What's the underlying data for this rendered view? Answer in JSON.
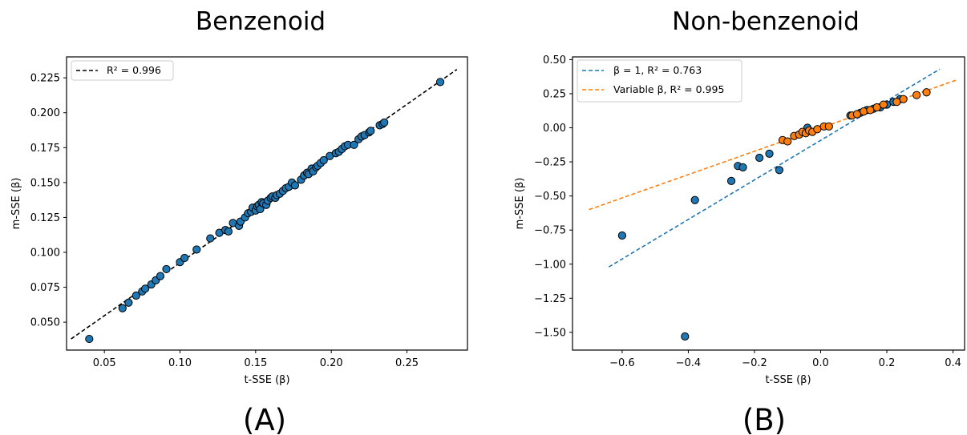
{
  "chart_data": [
    {
      "type": "scatter",
      "title": "Benzenoid",
      "panel_label": "(A)",
      "xlabel": "t-SSE (β)",
      "ylabel": "m-SSE (β)",
      "xlim": [
        0.025,
        0.29
      ],
      "ylim": [
        0.03,
        0.24
      ],
      "xticks": [
        0.05,
        0.1,
        0.15,
        0.2,
        0.25
      ],
      "xtick_labels": [
        "0.05",
        "0.10",
        "0.15",
        "0.20",
        "0.25"
      ],
      "yticks": [
        0.05,
        0.075,
        0.1,
        0.125,
        0.15,
        0.175,
        0.2,
        0.225
      ],
      "ytick_labels": [
        "0.050",
        "0.075",
        "0.100",
        "0.125",
        "0.150",
        "0.175",
        "0.200",
        "0.225"
      ],
      "legend_placement": "upper-left",
      "series": [
        {
          "name": "",
          "kind": "points",
          "color": "#1f77b4",
          "x": [
            0.04,
            0.062,
            0.066,
            0.071,
            0.075,
            0.077,
            0.081,
            0.084,
            0.087,
            0.091,
            0.1,
            0.103,
            0.111,
            0.12,
            0.126,
            0.13,
            0.132,
            0.135,
            0.139,
            0.14,
            0.143,
            0.145,
            0.147,
            0.148,
            0.15,
            0.151,
            0.152,
            0.153,
            0.154,
            0.155,
            0.157,
            0.158,
            0.16,
            0.161,
            0.163,
            0.164,
            0.166,
            0.168,
            0.17,
            0.172,
            0.174,
            0.176,
            0.18,
            0.182,
            0.184,
            0.185,
            0.187,
            0.188,
            0.19,
            0.191,
            0.193,
            0.195,
            0.199,
            0.203,
            0.205,
            0.207,
            0.209,
            0.211,
            0.215,
            0.218,
            0.22,
            0.222,
            0.225,
            0.226,
            0.232,
            0.234,
            0.235,
            0.272
          ],
          "y": [
            0.038,
            0.06,
            0.064,
            0.069,
            0.072,
            0.074,
            0.077,
            0.08,
            0.083,
            0.088,
            0.093,
            0.096,
            0.102,
            0.11,
            0.114,
            0.116,
            0.115,
            0.121,
            0.119,
            0.122,
            0.125,
            0.128,
            0.129,
            0.132,
            0.13,
            0.133,
            0.134,
            0.131,
            0.136,
            0.135,
            0.134,
            0.137,
            0.139,
            0.14,
            0.139,
            0.141,
            0.142,
            0.144,
            0.146,
            0.147,
            0.15,
            0.148,
            0.152,
            0.155,
            0.157,
            0.156,
            0.16,
            0.158,
            0.161,
            0.162,
            0.164,
            0.166,
            0.169,
            0.171,
            0.172,
            0.174,
            0.176,
            0.177,
            0.177,
            0.181,
            0.183,
            0.184,
            0.186,
            0.187,
            0.191,
            0.192,
            0.193,
            0.222
          ]
        },
        {
          "name": "R² = 0.996",
          "kind": "line",
          "style": "dashed",
          "color": "#000000",
          "x": [
            0.028,
            0.283
          ],
          "y": [
            0.038,
            0.231
          ]
        }
      ]
    },
    {
      "type": "scatter",
      "title": "Non-benzenoid",
      "panel_label": "(B)",
      "xlabel": "t-SSE (β)",
      "ylabel": "m-SSE (β)",
      "xlim": [
        -0.75,
        0.435
      ],
      "ylim": [
        -1.63,
        0.52
      ],
      "xticks": [
        -0.6,
        -0.4,
        -0.2,
        0.0,
        0.2,
        0.4
      ],
      "xtick_labels": [
        "−0.6",
        "−0.4",
        "−0.2",
        "0.0",
        "0.2",
        "0.4"
      ],
      "yticks": [
        0.5,
        0.25,
        0.0,
        -0.25,
        -0.5,
        -0.75,
        -1.0,
        -1.25,
        -1.5
      ],
      "ytick_labels": [
        "0.50",
        "0.25",
        "0.00",
        "−0.25",
        "−0.50",
        "−0.75",
        "−1.00",
        "−1.25",
        "−1.50"
      ],
      "legend_placement": "upper-left",
      "series": [
        {
          "name": "",
          "kind": "points",
          "color": "#1f77b4",
          "x": [
            -0.6,
            -0.41,
            -0.38,
            -0.27,
            -0.25,
            -0.235,
            -0.185,
            -0.155,
            -0.125,
            -0.04,
            0.09,
            0.12,
            0.14,
            0.16,
            0.18,
            0.2,
            0.22,
            0.24
          ],
          "y": [
            -0.79,
            -1.53,
            -0.53,
            -0.39,
            -0.28,
            -0.29,
            -0.22,
            -0.19,
            -0.31,
            0.0,
            0.09,
            0.11,
            0.13,
            0.14,
            0.15,
            0.17,
            0.19,
            0.21
          ]
        },
        {
          "name": "",
          "kind": "points",
          "color": "#ff7f0e",
          "x": [
            -0.115,
            -0.1,
            -0.08,
            -0.065,
            -0.055,
            -0.045,
            -0.035,
            -0.025,
            -0.01,
            0.01,
            0.025,
            0.095,
            0.11,
            0.13,
            0.15,
            0.17,
            0.19,
            0.23,
            0.25,
            0.29,
            0.32
          ],
          "y": [
            -0.09,
            -0.1,
            -0.06,
            -0.05,
            -0.03,
            -0.04,
            -0.02,
            -0.03,
            -0.01,
            0.01,
            0.01,
            0.09,
            0.1,
            0.12,
            0.13,
            0.15,
            0.17,
            0.19,
            0.21,
            0.24,
            0.26
          ]
        },
        {
          "name": "β = 1, R² = 0.763",
          "kind": "line",
          "style": "dashed",
          "color": "#1f77b4",
          "x": [
            -0.64,
            0.36
          ],
          "y": [
            -1.02,
            0.43
          ]
        },
        {
          "name": "Variable β, R² = 0.995",
          "kind": "line",
          "style": "dashed",
          "color": "#ff7f0e",
          "x": [
            -0.7,
            0.41
          ],
          "y": [
            -0.6,
            0.35
          ]
        }
      ]
    }
  ]
}
